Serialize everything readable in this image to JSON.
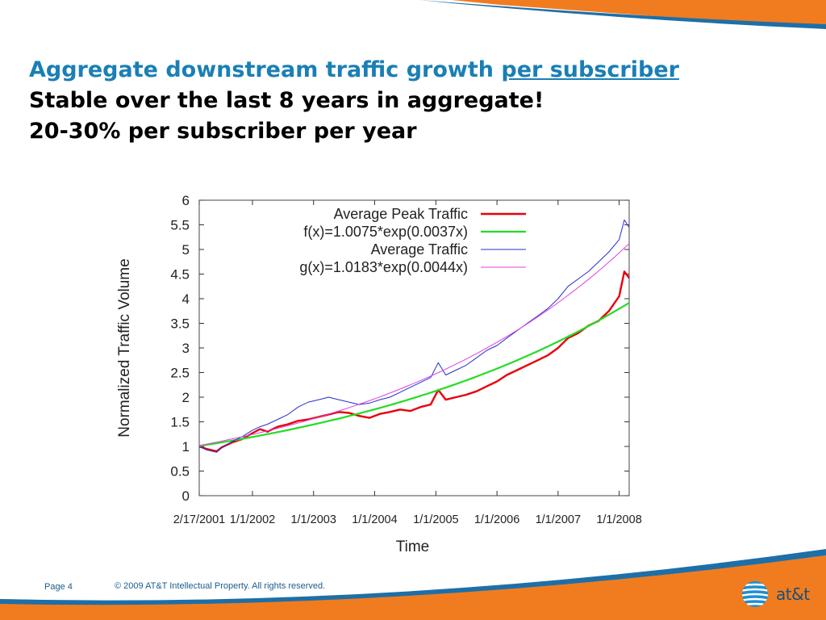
{
  "slide": {
    "title_line1_prefix": "Aggregate downstream traffic growth ",
    "title_line1_link": "per subscriber",
    "title_line2": "Stable over the last 8 years in aggregate!",
    "title_line3": "20-30% per subscriber per year"
  },
  "footer": {
    "page": "Page 4",
    "copyright": "© 2009 AT&T Intellectual Property. All rights reserved."
  },
  "logo": {
    "text": "at&t",
    "icon": "att-globe-icon"
  },
  "colors": {
    "title_blue": "#1a7fb5",
    "orange": "#f07c1f",
    "band_blue": "#1d6fa8"
  },
  "chart_data": {
    "type": "line",
    "title": "",
    "xlabel": "Time",
    "ylabel": "Normalized Traffic Volume",
    "xlim": [
      "2001-02-17",
      "2008-03-01"
    ],
    "ylim": [
      0,
      6
    ],
    "yticks": [
      "0",
      "0.5",
      "1",
      "1.5",
      "2",
      "2.5",
      "3",
      "3.5",
      "4",
      "4.5",
      "5",
      "5.5",
      "6"
    ],
    "xtick_labels": [
      {
        "date": "2001-02-17",
        "label": "2/17/2001"
      },
      {
        "date": "2002-01-01",
        "label": "1/1/2002"
      },
      {
        "date": "2003-01-01",
        "label": "1/1/2003"
      },
      {
        "date": "2004-01-01",
        "label": "1/1/2004"
      },
      {
        "date": "2005-01-01",
        "label": "1/1/2005"
      },
      {
        "date": "2006-01-01",
        "label": "1/1/2006"
      },
      {
        "date": "2007-01-01",
        "label": "1/1/2007"
      },
      {
        "date": "2008-01-01",
        "label": "1/1/2008"
      }
    ],
    "legend_position": "top-right",
    "series": [
      {
        "name": "Average Peak Traffic",
        "color": "#e8000b",
        "width": 2.4,
        "x": [
          "2001-02-17",
          "2001-04-01",
          "2001-06-01",
          "2001-07-01",
          "2001-09-01",
          "2001-11-01",
          "2002-01-01",
          "2002-02-15",
          "2002-04-01",
          "2002-06-01",
          "2002-08-01",
          "2002-10-01",
          "2002-12-01",
          "2003-02-01",
          "2003-04-01",
          "2003-06-01",
          "2003-08-01",
          "2003-10-01",
          "2003-12-01",
          "2004-02-01",
          "2004-04-01",
          "2004-06-01",
          "2004-08-01",
          "2004-10-01",
          "2004-12-01",
          "2005-01-15",
          "2005-03-01",
          "2005-05-01",
          "2005-07-01",
          "2005-09-01",
          "2005-11-01",
          "2006-01-01",
          "2006-03-01",
          "2006-05-01",
          "2006-07-01",
          "2006-09-01",
          "2006-11-01",
          "2007-01-01",
          "2007-03-01",
          "2007-05-01",
          "2007-07-01",
          "2007-09-01",
          "2007-11-01",
          "2008-01-01",
          "2008-02-01",
          "2008-03-01"
        ],
        "y": [
          1.0,
          0.95,
          0.9,
          0.98,
          1.08,
          1.15,
          1.27,
          1.35,
          1.3,
          1.4,
          1.45,
          1.52,
          1.55,
          1.6,
          1.65,
          1.7,
          1.68,
          1.62,
          1.58,
          1.66,
          1.7,
          1.75,
          1.72,
          1.8,
          1.85,
          2.15,
          1.95,
          2.0,
          2.05,
          2.12,
          2.22,
          2.32,
          2.45,
          2.55,
          2.65,
          2.75,
          2.85,
          3.0,
          3.2,
          3.3,
          3.45,
          3.55,
          3.75,
          4.05,
          4.55,
          4.42
        ]
      },
      {
        "name": "f(x)=1.0075*exp(0.0037x)",
        "color": "#22dd22",
        "width": 2.2,
        "fit_a": 1.0075,
        "fit_k": 0.0037,
        "x": [
          "2001-02-17",
          "2008-03-01"
        ],
        "y": [
          1.0075,
          3.92
        ]
      },
      {
        "name": "Average Traffic",
        "color": "#2230d0",
        "width": 1.0,
        "x": [
          "2001-02-17",
          "2001-04-01",
          "2001-06-01",
          "2001-07-01",
          "2001-09-01",
          "2001-11-01",
          "2002-01-01",
          "2002-02-15",
          "2002-04-01",
          "2002-06-01",
          "2002-08-01",
          "2002-10-01",
          "2002-12-01",
          "2003-02-01",
          "2003-04-01",
          "2003-06-01",
          "2003-08-01",
          "2003-10-01",
          "2003-12-01",
          "2004-02-01",
          "2004-04-01",
          "2004-06-01",
          "2004-08-01",
          "2004-10-01",
          "2004-12-01",
          "2005-01-15",
          "2005-03-01",
          "2005-05-01",
          "2005-07-01",
          "2005-09-01",
          "2005-11-01",
          "2006-01-01",
          "2006-03-01",
          "2006-05-01",
          "2006-07-01",
          "2006-09-01",
          "2006-11-01",
          "2007-01-01",
          "2007-03-01",
          "2007-05-01",
          "2007-07-01",
          "2007-09-01",
          "2007-11-01",
          "2008-01-01",
          "2008-02-01",
          "2008-03-01"
        ],
        "y": [
          1.0,
          0.93,
          0.88,
          0.97,
          1.1,
          1.2,
          1.33,
          1.4,
          1.45,
          1.55,
          1.65,
          1.8,
          1.9,
          1.95,
          2.0,
          1.95,
          1.9,
          1.85,
          1.88,
          1.95,
          2.0,
          2.1,
          2.2,
          2.3,
          2.4,
          2.7,
          2.45,
          2.55,
          2.65,
          2.8,
          2.95,
          3.05,
          3.2,
          3.35,
          3.5,
          3.65,
          3.8,
          4.0,
          4.25,
          4.4,
          4.55,
          4.75,
          4.95,
          5.2,
          5.6,
          5.45
        ]
      },
      {
        "name": "g(x)=1.0183*exp(0.0044x)",
        "color": "#e040e0",
        "width": 1.0,
        "fit_a": 1.0183,
        "fit_k": 0.0044,
        "x": [
          "2001-02-17",
          "2008-03-01"
        ],
        "y": [
          1.0183,
          5.15
        ]
      }
    ]
  }
}
